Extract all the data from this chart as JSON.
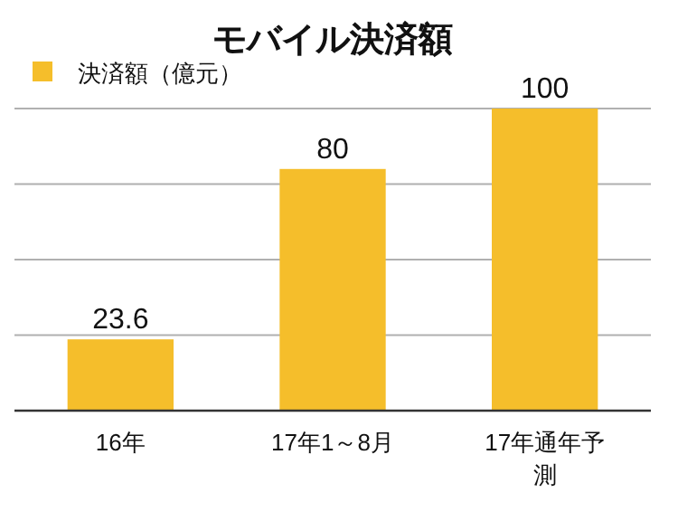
{
  "chart_data": {
    "type": "bar",
    "title": "モバイル決済額",
    "categories": [
      "16年",
      "17年1～8月",
      "17年通年予測"
    ],
    "series": [
      {
        "name": "決済額（億元）",
        "color": "#f5be2b",
        "values": [
          23.6,
          80,
          100
        ]
      }
    ],
    "ylim": [
      0,
      100
    ],
    "yticks": [
      {
        "value": 0,
        "label": null
      },
      {
        "value": 25,
        "label": null
      },
      {
        "value": 50,
        "label": null
      },
      {
        "value": 75,
        "label": null
      },
      {
        "value": 100,
        "label": null
      }
    ],
    "tick_labels": "x",
    "grid": "y",
    "legend": "top left",
    "data_labels": true
  }
}
